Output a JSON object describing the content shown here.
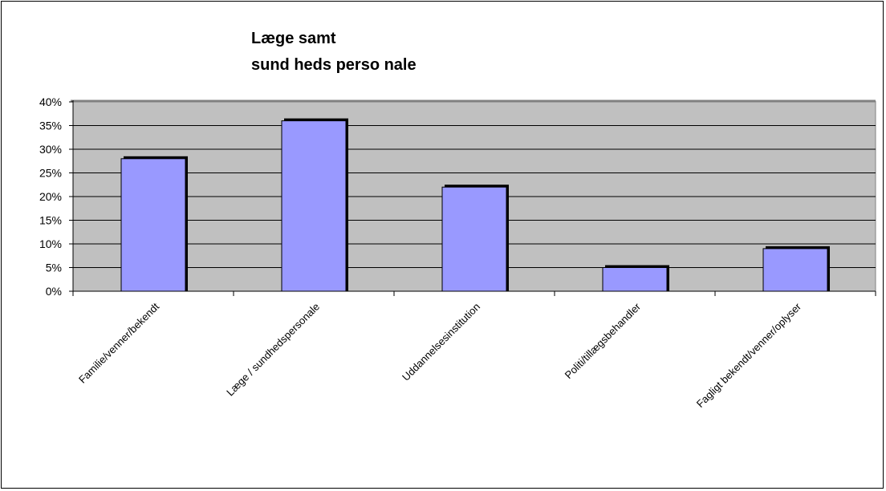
{
  "chart_data": {
    "type": "bar",
    "title": "Læge samt\nsund heds perso nale",
    "categories": [
      "Familie/venner/bekendt",
      "Læge / sundhedspersonale",
      "Uddannelsesinstitution",
      "Politi/tillægsbehandler",
      "Fagligt bekendt/venner/oplyser"
    ],
    "series": [
      {
        "values": [
          28,
          36,
          22,
          5,
          9
        ]
      }
    ],
    "ylim": [
      0,
      40
    ],
    "yticks": [
      0,
      5,
      10,
      15,
      20,
      25,
      30,
      35,
      40
    ],
    "ytick_suffix": "%",
    "xlabel": "",
    "ylabel": "",
    "grid": true,
    "legend": "none",
    "colors": {
      "bar": "#9999ff",
      "plot_bg": "#c0c0c0",
      "grid": "#000000",
      "wall_edge": "#808080"
    }
  }
}
